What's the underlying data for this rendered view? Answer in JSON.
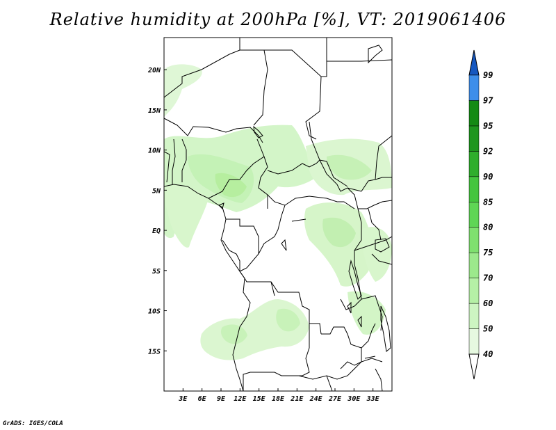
{
  "title": "Relative humidity at 200hPa [%], VT: 2019061406",
  "credit": "GrADS: IGES/COLA",
  "map": {
    "lon_range": [
      0,
      36
    ],
    "lat_range": [
      -20,
      24
    ],
    "lat_ticks": [
      {
        "value": 20,
        "label": "20N"
      },
      {
        "value": 15,
        "label": "15N"
      },
      {
        "value": 10,
        "label": "10N"
      },
      {
        "value": 5,
        "label": "5N"
      },
      {
        "value": 0,
        "label": "EQ"
      },
      {
        "value": -5,
        "label": "5S"
      },
      {
        "value": -10,
        "label": "10S"
      },
      {
        "value": -15,
        "label": "15S"
      }
    ],
    "lon_ticks": [
      {
        "value": 3,
        "label": "3E"
      },
      {
        "value": 6,
        "label": "6E"
      },
      {
        "value": 9,
        "label": "9E"
      },
      {
        "value": 12,
        "label": "12E"
      },
      {
        "value": 15,
        "label": "15E"
      },
      {
        "value": 18,
        "label": "18E"
      },
      {
        "value": 21,
        "label": "21E"
      },
      {
        "value": 24,
        "label": "24E"
      },
      {
        "value": 27,
        "label": "27E"
      },
      {
        "value": 30,
        "label": "30E"
      },
      {
        "value": 33,
        "label": "33E"
      }
    ]
  },
  "colorbar": {
    "levels": [
      {
        "label": "40",
        "color": "#e6f9e0"
      },
      {
        "label": "50",
        "color": "#cdf5c2"
      },
      {
        "label": "60",
        "color": "#b5f0a6"
      },
      {
        "label": "70",
        "color": "#9ce98c"
      },
      {
        "label": "75",
        "color": "#7fe06f"
      },
      {
        "label": "80",
        "color": "#5fd655"
      },
      {
        "label": "85",
        "color": "#44c53e"
      },
      {
        "label": "90",
        "color": "#2fae2c"
      },
      {
        "label": "92",
        "color": "#1e961e"
      },
      {
        "label": "95",
        "color": "#148a14"
      },
      {
        "label": "97",
        "color": "#3d8eea"
      },
      {
        "label": "99",
        "color": "#1f6fd9"
      }
    ],
    "over_color": "#1658c0",
    "under_color": "#ffffff"
  }
}
